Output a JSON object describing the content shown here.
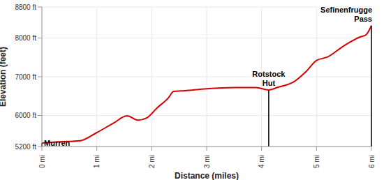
{
  "chart_data": {
    "type": "line",
    "x_label": "Distance (miles)",
    "y_label": "Elevation (feet)",
    "x": [
      0,
      0.3,
      0.7,
      1.0,
      1.3,
      1.55,
      1.75,
      1.9,
      2.1,
      2.3,
      2.4,
      2.6,
      3.0,
      3.5,
      3.9,
      4.13,
      4.3,
      4.6,
      4.8,
      5.0,
      5.2,
      5.5,
      5.8,
      5.9,
      6.0
    ],
    "values": [
      5290,
      5320,
      5350,
      5560,
      5800,
      5990,
      5880,
      5930,
      6200,
      6450,
      6620,
      6640,
      6690,
      6720,
      6720,
      6660,
      6730,
      6880,
      7120,
      7420,
      7510,
      7800,
      8030,
      8080,
      8320
    ],
    "color": "#d40000",
    "xlim": [
      0,
      6
    ],
    "xticks": [
      {
        "value": 0,
        "label": "0 mi"
      },
      {
        "value": 1,
        "label": "1 mi"
      },
      {
        "value": 2,
        "label": "2 mi"
      },
      {
        "value": 3,
        "label": "3 mi"
      },
      {
        "value": 4,
        "label": "4 mi"
      },
      {
        "value": 5,
        "label": "5 mi"
      },
      {
        "value": 6,
        "label": "6 mi"
      }
    ],
    "ylim": [
      5200,
      8800
    ],
    "yticks": [
      {
        "value": 5200,
        "label": "5200 ft"
      },
      {
        "value": 6000,
        "label": "6000 ft"
      },
      {
        "value": 7000,
        "label": "7000 ft"
      },
      {
        "value": 8000,
        "label": "8000 ft"
      },
      {
        "value": 8800,
        "label": "8800 ft"
      }
    ],
    "grid": true,
    "annotations": [
      {
        "text": "Murren",
        "x": 0,
        "y": 5290
      },
      {
        "text": "Rotstock Hut",
        "x": 4.13,
        "y": 6660
      },
      {
        "text": "Sefinenfrugge Pass",
        "x": 6,
        "y": 8320
      }
    ]
  }
}
